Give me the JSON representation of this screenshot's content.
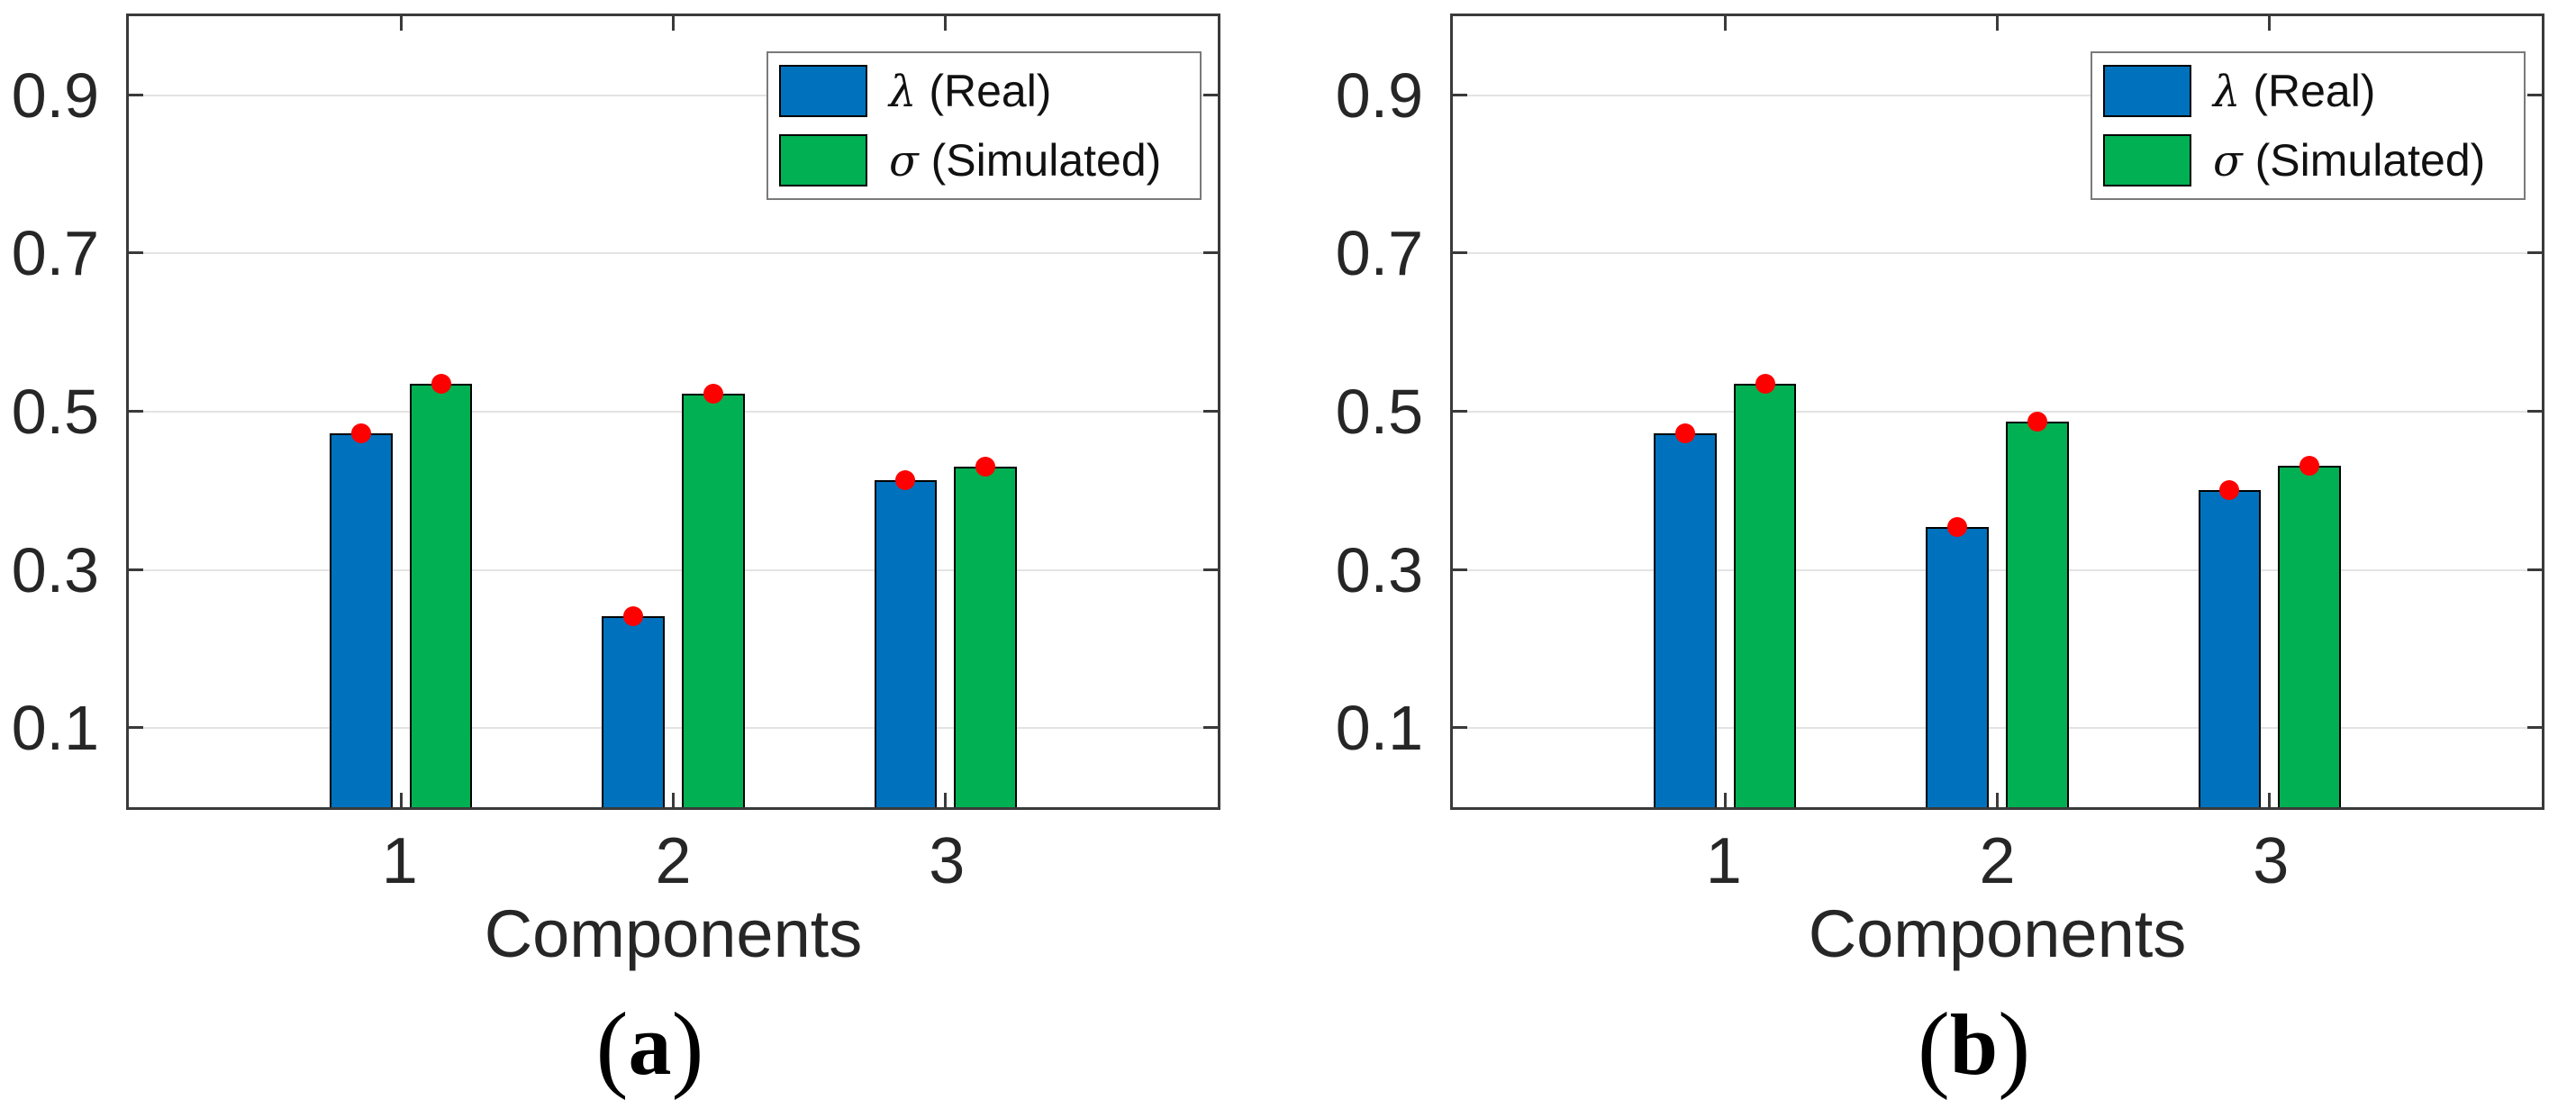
{
  "figure": {
    "background": "#ffffff",
    "captions": [
      {
        "open": "(",
        "letter": "a",
        "close": ")"
      },
      {
        "open": "(",
        "letter": "b",
        "close": ")"
      }
    ]
  },
  "colors": {
    "bar_blue": "#0072bd",
    "bar_green": "#00b052",
    "marker_red": "#ff0000",
    "axis": "#3a3a3a",
    "grid": "#e3e3e3",
    "text": "#262626",
    "legend_border": "#7a7a7a"
  },
  "chart_data": [
    {
      "type": "bar",
      "panel_label": "(a)",
      "title": "",
      "xlabel": "Components",
      "ylabel": "",
      "categories": [
        "1",
        "2",
        "3"
      ],
      "yticks": [
        0.1,
        0.3,
        0.5,
        0.7,
        0.9
      ],
      "ytick_labels": [
        "0.1",
        "0.3",
        "0.5",
        "0.7",
        "0.9"
      ],
      "ylim": [
        0,
        1
      ],
      "grid": "horizontal",
      "series": [
        {
          "id": "lambda-real",
          "name": "λ (Real)",
          "color": "#0072bd",
          "values": [
            0.473,
            0.241,
            0.413
          ]
        },
        {
          "id": "sigma-simulated",
          "name": "σ (Simulated)",
          "color": "#00b052",
          "values": [
            0.535,
            0.523,
            0.431
          ]
        }
      ],
      "markers": {
        "shape": "circle",
        "color": "#ff0000",
        "note": "red dot at the top of every bar"
      },
      "legend": {
        "position": "top-right",
        "entries": [
          {
            "id": "lambda-real",
            "symbol": "λ",
            "text": "(Real)",
            "color": "#0072bd"
          },
          {
            "id": "sigma-simulated",
            "symbol": "σ",
            "text": "(Simulated)",
            "color": "#00b052"
          }
        ]
      }
    },
    {
      "type": "bar",
      "panel_label": "(b)",
      "title": "",
      "xlabel": "Components",
      "ylabel": "",
      "categories": [
        "1",
        "2",
        "3"
      ],
      "yticks": [
        0.1,
        0.3,
        0.5,
        0.7,
        0.9
      ],
      "ytick_labels": [
        "0.1",
        "0.3",
        "0.5",
        "0.7",
        "0.9"
      ],
      "ylim": [
        0,
        1
      ],
      "grid": "horizontal",
      "series": [
        {
          "id": "lambda-real",
          "name": "λ (Real)",
          "color": "#0072bd",
          "values": [
            0.473,
            0.354,
            0.401
          ]
        },
        {
          "id": "sigma-simulated",
          "name": "σ (Simulated)",
          "color": "#00b052",
          "values": [
            0.535,
            0.487,
            0.432
          ]
        }
      ],
      "markers": {
        "shape": "circle",
        "color": "#ff0000",
        "note": "red dot at the top of every bar"
      },
      "legend": {
        "position": "top-right",
        "entries": [
          {
            "id": "lambda-real",
            "symbol": "λ",
            "text": "(Real)",
            "color": "#0072bd"
          },
          {
            "id": "sigma-simulated",
            "symbol": "σ",
            "text": "(Simulated)",
            "color": "#00b052"
          }
        ]
      }
    }
  ]
}
